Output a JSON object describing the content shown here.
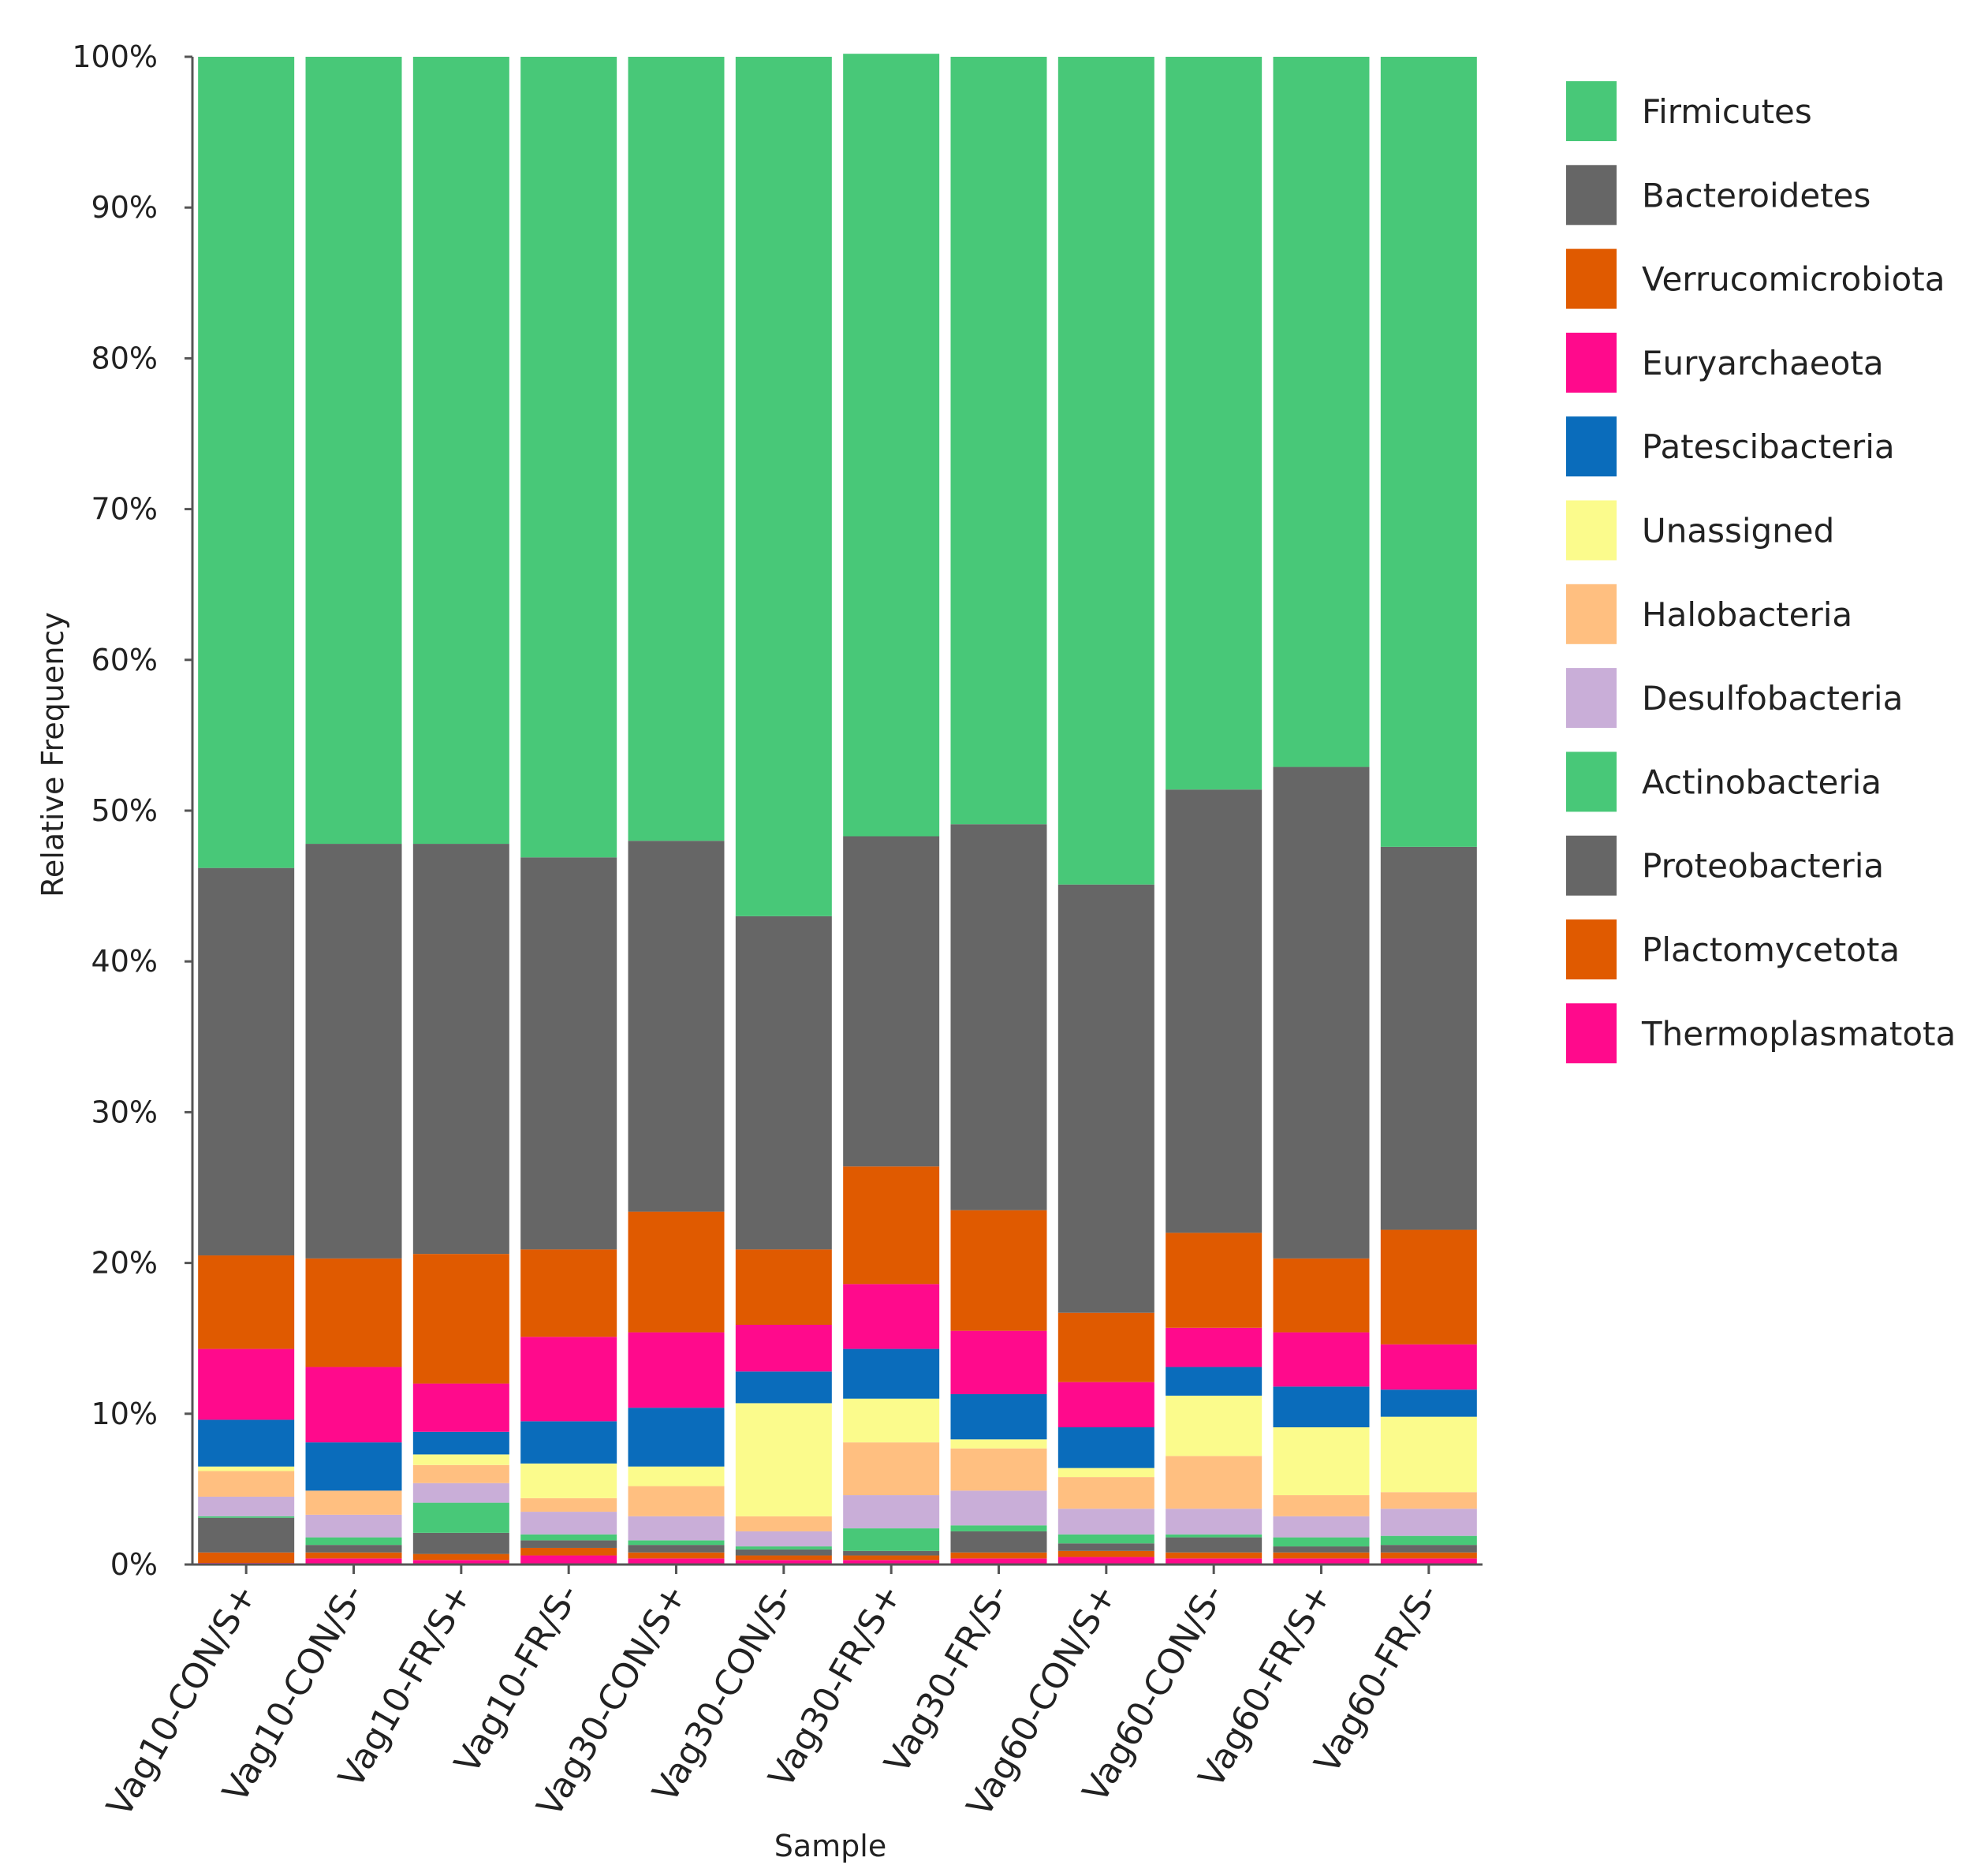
{
  "chart_data": {
    "type": "bar",
    "stacked": true,
    "percent": true,
    "xlabel": "Sample",
    "ylabel": "Relative Frequency",
    "ylim": [
      0,
      100
    ],
    "yticks": [
      "0%",
      "10%",
      "20%",
      "30%",
      "40%",
      "50%",
      "60%",
      "70%",
      "80%",
      "90%",
      "100%"
    ],
    "grid": false,
    "legend_position": "right",
    "categories": [
      "Vag10-CON/S+",
      "Vag10-CON/S-",
      "Vag10-FR/S+",
      "Vag10-FR/S-",
      "Vag30-CON/S+",
      "Vag30-CON/S-",
      "Vag30-FR/S+",
      "Vag30-FR/S-",
      "Vag60-CON/S+",
      "Vag60-CON/S-",
      "Vag60-FR/S+",
      "Vag60-FR/S-"
    ],
    "series": [
      {
        "name": "Thermoplasmatota",
        "color": "#ff0a8c",
        "values": [
          0.1,
          0.4,
          0.3,
          0.6,
          0.4,
          0.3,
          0.3,
          0.4,
          0.5,
          0.4,
          0.4,
          0.4
        ]
      },
      {
        "name": "Plactomycetota",
        "color": "#e05a00",
        "values": [
          0.7,
          0.4,
          0.4,
          0.5,
          0.4,
          0.3,
          0.3,
          0.4,
          0.4,
          0.4,
          0.4,
          0.4
        ]
      },
      {
        "name": "Proteobacteria",
        "color": "#666666",
        "values": [
          2.3,
          0.5,
          1.4,
          0.5,
          0.5,
          0.4,
          0.3,
          1.4,
          0.5,
          1.0,
          0.4,
          0.5
        ]
      },
      {
        "name": "Actinobacteria",
        "color": "#48c878",
        "values": [
          0.1,
          0.5,
          2.0,
          0.4,
          0.3,
          0.2,
          1.5,
          0.4,
          0.6,
          0.2,
          0.6,
          0.6
        ]
      },
      {
        "name": "Desulfobacteria",
        "color": "#c9aed8",
        "values": [
          1.3,
          1.5,
          1.3,
          1.5,
          1.6,
          1.0,
          2.2,
          2.3,
          1.7,
          1.7,
          1.4,
          1.8
        ]
      },
      {
        "name": "Halobacteria",
        "color": "#ffbf80",
        "values": [
          1.7,
          1.6,
          1.2,
          0.9,
          2.0,
          1.0,
          3.5,
          2.8,
          2.1,
          3.5,
          1.4,
          1.1
        ]
      },
      {
        "name": "Unassigned",
        "color": "#fbfb8c",
        "values": [
          0.3,
          0.0,
          0.7,
          2.3,
          1.3,
          7.5,
          2.9,
          0.6,
          0.6,
          4.0,
          4.5,
          5.0
        ]
      },
      {
        "name": "Patescibacteria",
        "color": "#0a6cbb",
        "values": [
          3.1,
          3.2,
          1.5,
          2.8,
          3.9,
          2.1,
          3.3,
          3.0,
          2.7,
          1.9,
          2.7,
          1.8
        ]
      },
      {
        "name": "Euryarchaeota",
        "color": "#ff0a8c",
        "values": [
          4.7,
          5.0,
          3.2,
          5.6,
          5.0,
          3.1,
          4.3,
          4.2,
          3.0,
          2.6,
          3.6,
          3.0
        ]
      },
      {
        "name": "Verrucomicrobiota",
        "color": "#e05a00",
        "values": [
          6.2,
          7.2,
          8.6,
          5.8,
          8.0,
          5.0,
          7.8,
          8.0,
          4.6,
          6.3,
          4.9,
          7.6
        ]
      },
      {
        "name": "Bacteroidetes",
        "color": "#666666",
        "values": [
          25.7,
          27.5,
          27.2,
          26.0,
          24.6,
          22.1,
          21.9,
          25.6,
          28.4,
          29.4,
          32.6,
          25.4
        ]
      },
      {
        "name": "Firmicutes",
        "color": "#48c878",
        "values": [
          53.8,
          52.2,
          52.2,
          53.1,
          52.0,
          57.0,
          51.9,
          50.9,
          54.9,
          48.6,
          47.1,
          52.4
        ]
      }
    ],
    "legend": [
      "Firmicutes",
      "Bacteroidetes",
      "Verrucomicrobiota",
      "Euryarchaeota",
      "Patescibacteria",
      "Unassigned",
      "Halobacteria",
      "Desulfobacteria",
      "Actinobacteria",
      "Proteobacteria",
      "Plactomycetota",
      "Thermoplasmatota"
    ]
  }
}
